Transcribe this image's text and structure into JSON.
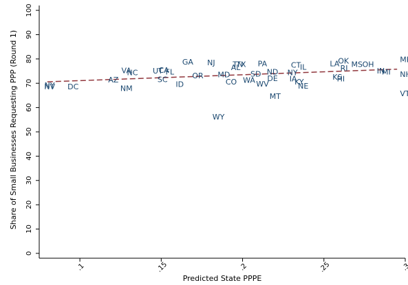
{
  "chart_data": {
    "type": "scatter",
    "xlabel": "Predicted State PPPE",
    "ylabel": "Share of Small Businesses Requesting PPP (Round 1)",
    "xlim": [
      0.075,
      0.3
    ],
    "ylim": [
      -2,
      102
    ],
    "xticks": [
      0.1,
      0.15,
      0.2,
      0.25,
      0.3
    ],
    "xtick_labels": [
      ".1",
      ".15",
      ".2",
      ".25",
      ".3"
    ],
    "yticks": [
      0,
      10,
      20,
      30,
      40,
      50,
      60,
      70,
      80,
      90,
      100
    ],
    "ytick_labels": [
      "0",
      "10",
      "20",
      "30",
      "40",
      "50",
      "60",
      "70",
      "80",
      "90",
      "100"
    ],
    "grid": false,
    "label_color": "#1a476f",
    "fit_color": "#90353b",
    "fit_line": {
      "x": [
        0.08,
        0.295
      ],
      "y": [
        70.6,
        75.8
      ]
    },
    "points": [
      {
        "label": "NV",
        "x": 0.0814,
        "y": 68.3
      },
      {
        "label": "NY",
        "x": 0.0814,
        "y": 69.0
      },
      {
        "label": "DC",
        "x": 0.0958,
        "y": 68.3
      },
      {
        "label": "VA",
        "x": 0.1286,
        "y": 75.0
      },
      {
        "label": "NC",
        "x": 0.1323,
        "y": 74.2
      },
      {
        "label": "AZ",
        "x": 0.1206,
        "y": 71.2
      },
      {
        "label": "NM",
        "x": 0.1286,
        "y": 67.6
      },
      {
        "label": "UT",
        "x": 0.1479,
        "y": 74.8
      },
      {
        "label": "CA",
        "x": 0.1516,
        "y": 75.1
      },
      {
        "label": "FL",
        "x": 0.1553,
        "y": 74.4
      },
      {
        "label": "SC",
        "x": 0.1508,
        "y": 71.3
      },
      {
        "label": "ID",
        "x": 0.1614,
        "y": 69.3
      },
      {
        "label": "GA",
        "x": 0.1663,
        "y": 78.6
      },
      {
        "label": "NJ",
        "x": 0.1807,
        "y": 78.3
      },
      {
        "label": "OR",
        "x": 0.1725,
        "y": 72.9
      },
      {
        "label": "MD",
        "x": 0.1885,
        "y": 73.3
      },
      {
        "label": "CO",
        "x": 0.193,
        "y": 70.4
      },
      {
        "label": "TN",
        "x": 0.1971,
        "y": 77.6
      },
      {
        "label": "TX",
        "x": 0.1991,
        "y": 77.6
      },
      {
        "label": "AL",
        "x": 0.1958,
        "y": 76.3
      },
      {
        "label": "WA",
        "x": 0.204,
        "y": 71.0
      },
      {
        "label": "SD",
        "x": 0.2081,
        "y": 73.6
      },
      {
        "label": "PA",
        "x": 0.2122,
        "y": 77.8
      },
      {
        "label": "WV",
        "x": 0.2122,
        "y": 69.5
      },
      {
        "label": "ND",
        "x": 0.2184,
        "y": 74.5
      },
      {
        "label": "DE",
        "x": 0.2184,
        "y": 71.7
      },
      {
        "label": "MT",
        "x": 0.22,
        "y": 64.4
      },
      {
        "label": "WY",
        "x": 0.1852,
        "y": 56.0
      },
      {
        "label": "CT",
        "x": 0.2328,
        "y": 77.3
      },
      {
        "label": "NY",
        "x": 0.2307,
        "y": 74.2
      },
      {
        "label": "IL",
        "x": 0.2373,
        "y": 76.4
      },
      {
        "label": "IA",
        "x": 0.2311,
        "y": 71.6
      },
      {
        "label": "KY",
        "x": 0.2348,
        "y": 70.4
      },
      {
        "label": "NE",
        "x": 0.2373,
        "y": 68.7
      },
      {
        "label": "LA",
        "x": 0.2566,
        "y": 77.8
      },
      {
        "label": "OK",
        "x": 0.262,
        "y": 78.9
      },
      {
        "label": "RI",
        "x": 0.2624,
        "y": 76.0
      },
      {
        "label": "MS",
        "x": 0.2703,
        "y": 77.6
      },
      {
        "label": "OH",
        "x": 0.2772,
        "y": 77.6
      },
      {
        "label": "KS",
        "x": 0.2583,
        "y": 72.3
      },
      {
        "label": "HI",
        "x": 0.2604,
        "y": 71.6
      },
      {
        "label": "IN",
        "x": 0.285,
        "y": 74.9
      },
      {
        "label": "MI",
        "x": 0.2883,
        "y": 74.4
      },
      {
        "label": "ME",
        "x": 0.3002,
        "y": 79.5
      },
      {
        "label": "NH",
        "x": 0.3002,
        "y": 73.4
      },
      {
        "label": "VT",
        "x": 0.2998,
        "y": 65.5
      }
    ]
  }
}
